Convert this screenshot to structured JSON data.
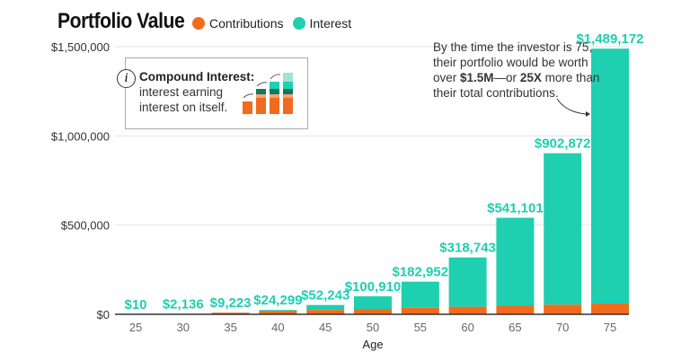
{
  "chart_data": {
    "type": "bar",
    "stacked": true,
    "title": "Portfolio Value",
    "xlabel": "Age",
    "ylabel": "",
    "ylim": [
      0,
      1500000
    ],
    "yticks": [
      "$0",
      "$500,000",
      "$1,000,000",
      "$1,500,000"
    ],
    "ytick_values": [
      0,
      500000,
      1000000,
      1500000
    ],
    "grid": true,
    "legend_placement": "top",
    "categories": [
      "25",
      "30",
      "35",
      "40",
      "45",
      "50",
      "55",
      "60",
      "65",
      "70",
      "75"
    ],
    "series": [
      {
        "name": "Contributions",
        "color": "#f26b1d",
        "values": [
          10,
          6000,
          12000,
          18000,
          24000,
          30000,
          36000,
          42000,
          48000,
          54000,
          60000
        ]
      },
      {
        "name": "Interest",
        "color": "#1ecfb0",
        "values": [
          0,
          -3864,
          -2777,
          6299,
          28243,
          70910,
          146952,
          276743,
          493101,
          848872,
          1429172
        ]
      }
    ],
    "totals": [
      10,
      2136,
      9223,
      24299,
      52243,
      100910,
      182952,
      318743,
      541101,
      902872,
      1489172
    ],
    "data_labels": [
      "$10",
      "$2,136",
      "$9,223",
      "$24,299",
      "$52,243",
      "$100,910",
      "$182,952",
      "$318,743",
      "$541,101",
      "$902,872",
      "$1,489,172"
    ]
  },
  "info_box": {
    "heading": "Compound Interest:",
    "line1": "interest earning",
    "line2": "interest on itself.",
    "icon": "info-icon"
  },
  "annotation": {
    "line1": "By the time the investor is 75,",
    "line2": "their portfolio would be worth",
    "pre": "over ",
    "bold1": "$1.5M",
    "mid": "—or ",
    "bold2": "25X",
    "post": " more than",
    "line4": "their total contributions."
  }
}
